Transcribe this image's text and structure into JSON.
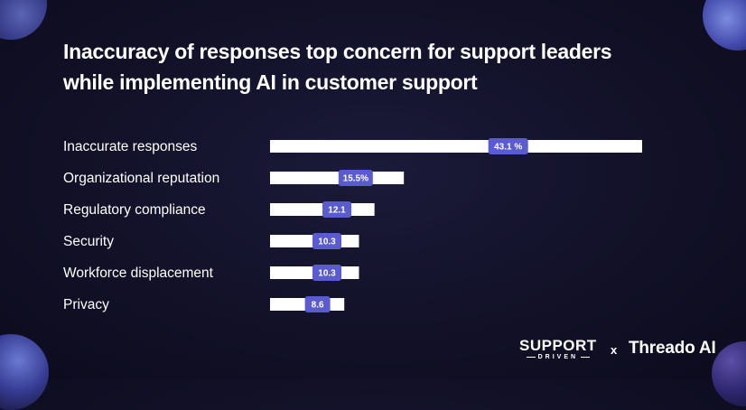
{
  "title_lines": [
    "Inaccuracy of responses top concern for support leaders",
    "while implementing AI in customer support"
  ],
  "branding": {
    "support_top": "SUPPORT",
    "support_bottom": "DRIVEN",
    "separator": "x",
    "partner": "Threado AI"
  },
  "colors": {
    "background": "#121128",
    "bar": "#ffffff",
    "value_badge": "#5a5bcf",
    "text": "#ffffff"
  },
  "chart_data": {
    "type": "bar",
    "orientation": "horizontal",
    "categories": [
      "Inaccurate responses",
      "Organizational reputation",
      "Regulatory compliance",
      "Security",
      "Workforce displacement",
      "Privacy"
    ],
    "values": [
      43.1,
      15.5,
      12.1,
      10.3,
      10.3,
      8.6
    ],
    "value_labels": [
      "43.1 %",
      "15.5%",
      "12.1",
      "10.3",
      "10.3",
      "8.6"
    ],
    "xlim": [
      0,
      43.1
    ],
    "grid": false,
    "legend": "none"
  }
}
